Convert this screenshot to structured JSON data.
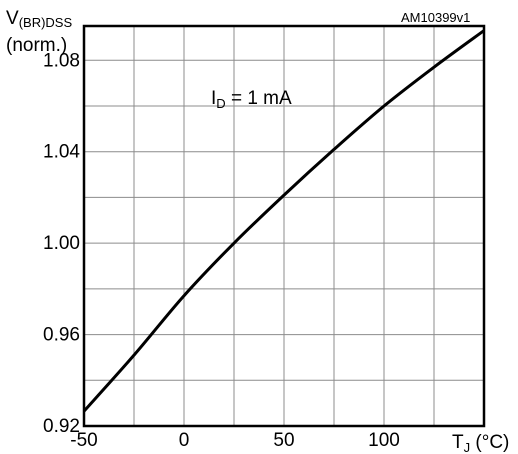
{
  "figure_id": "AM10399v1",
  "chart_data": {
    "type": "line",
    "ylabel": {
      "main": "V",
      "subscript": "(BR)DSS",
      "line2": "(norm.)"
    },
    "xlabel": {
      "main": "T",
      "subscript": "J",
      "unit": " (°C)"
    },
    "annotation": {
      "main": "I",
      "subscript": "D",
      "rest": "  = 1 mA"
    },
    "xlim": [
      -50,
      150
    ],
    "ylim": [
      0.92,
      1.095
    ],
    "x_ticks": [
      {
        "value": -50,
        "label": "-50"
      },
      {
        "value": 0,
        "label": "0"
      },
      {
        "value": 50,
        "label": "50"
      },
      {
        "value": 100,
        "label": "100"
      }
    ],
    "y_ticks": [
      {
        "value": 0.92,
        "label": "0.92"
      },
      {
        "value": 0.96,
        "label": "0.96"
      },
      {
        "value": 1.0,
        "label": "1.00"
      },
      {
        "value": 1.04,
        "label": "1.04"
      },
      {
        "value": 1.08,
        "label": "1.08"
      }
    ],
    "x_grid": [
      -25,
      0,
      25,
      50,
      75,
      100,
      125
    ],
    "y_grid": [
      0.94,
      0.96,
      0.98,
      1.0,
      1.02,
      1.04,
      1.06,
      1.08
    ],
    "grid": true,
    "series": [
      {
        "color": "#000000",
        "x": [
          -50,
          -25,
          0,
          25,
          50,
          75,
          100,
          125,
          150
        ],
        "y": [
          0.9265,
          0.951,
          0.977,
          1.0,
          1.021,
          1.041,
          1.06,
          1.077,
          1.093
        ]
      }
    ]
  }
}
